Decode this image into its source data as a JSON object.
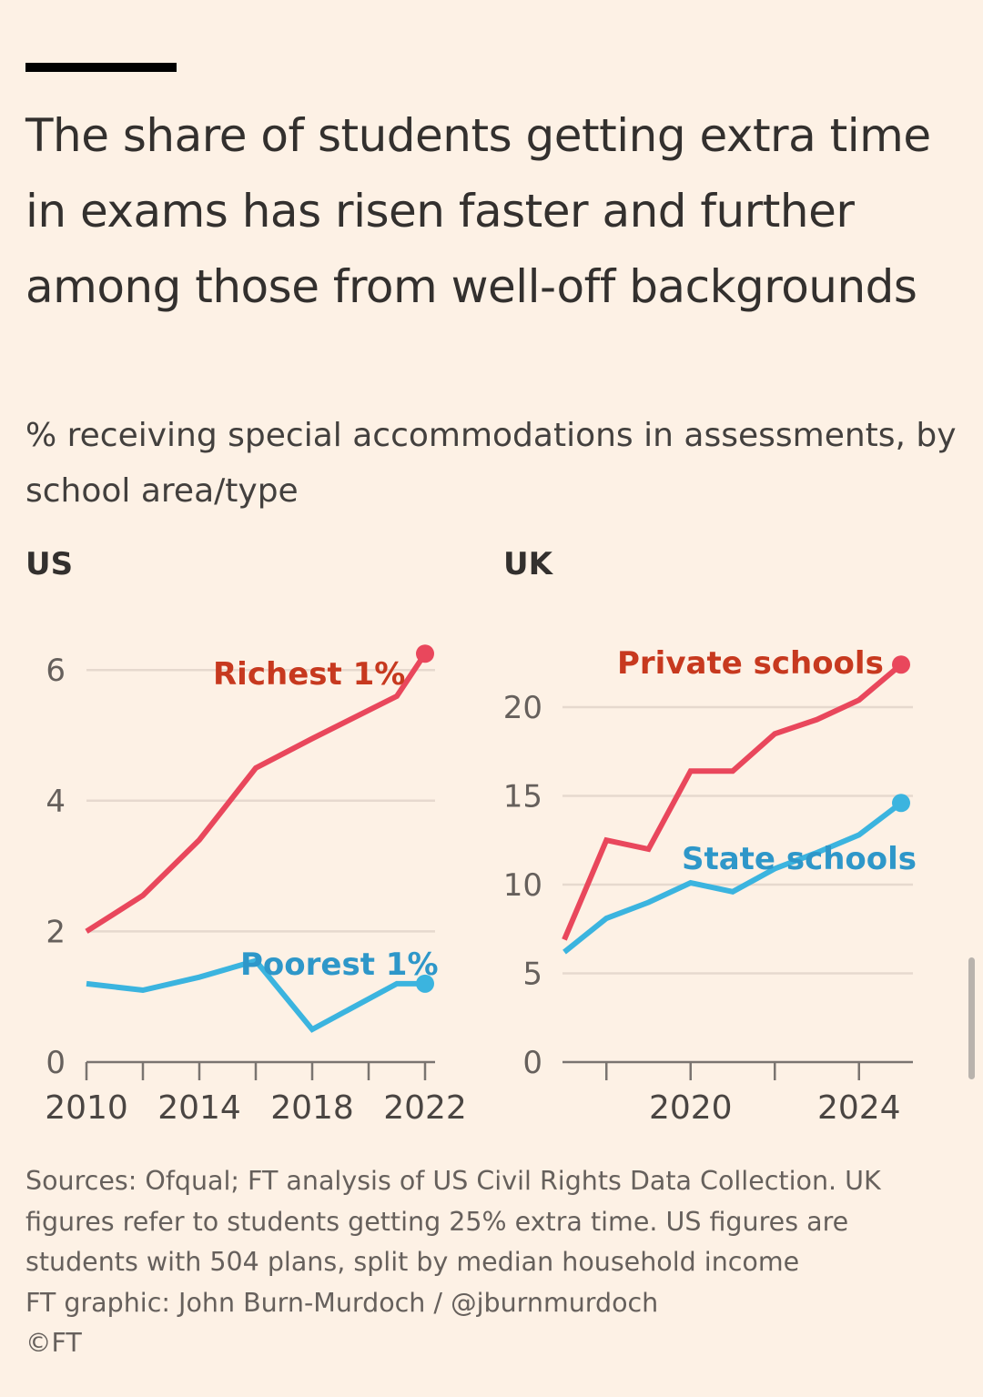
{
  "title": "The share of students getting extra time in exams has risen faster and further among those from well-off backgrounds",
  "subtitle": "% receiving special accommodations in assessments, by school area/type",
  "colors": {
    "red": "#e9475c",
    "blue": "#3bb4df",
    "red_label": "#c7391f",
    "blue_label": "#2e97c9"
  },
  "chart_data": [
    {
      "type": "line",
      "title": "US",
      "x": [
        2010,
        2012,
        2014,
        2016,
        2018,
        2021,
        2022
      ],
      "series": [
        {
          "name": "Richest 1%",
          "values": [
            2.0,
            2.55,
            3.4,
            4.5,
            4.95,
            5.6,
            6.25
          ]
        },
        {
          "name": "Poorest 1%",
          "values": [
            1.2,
            1.1,
            1.3,
            1.55,
            0.5,
            1.2,
            1.2
          ]
        }
      ],
      "ylim": [
        0,
        6
      ],
      "yticks": [
        "0",
        "2",
        "4",
        "6"
      ],
      "yticks_values": [
        0,
        2,
        4,
        6
      ],
      "xlim": [
        2010,
        2022
      ],
      "xticks_values": [
        2010,
        2012,
        2014,
        2016,
        2018,
        2020,
        2022
      ],
      "xtick_labels": [
        "2010",
        "2014",
        "2018",
        "2022"
      ],
      "xtick_label_values": [
        2010,
        2014,
        2018,
        2022
      ],
      "grid": true
    },
    {
      "type": "line",
      "title": "UK",
      "x": [
        2017,
        2018,
        2019,
        2020,
        2021,
        2022,
        2023,
        2024,
        2025
      ],
      "series": [
        {
          "name": "Private schools",
          "values": [
            6.9,
            12.5,
            12.0,
            16.4,
            16.4,
            18.5,
            19.3,
            20.4,
            22.4
          ]
        },
        {
          "name": "State schools",
          "values": [
            6.2,
            8.1,
            9.0,
            10.1,
            9.6,
            10.9,
            11.8,
            12.8,
            14.6
          ]
        }
      ],
      "ylim": [
        0,
        22.5
      ],
      "yticks": [
        "0",
        "5",
        "10",
        "15",
        "20"
      ],
      "yticks_values": [
        0,
        5,
        10,
        15,
        20
      ],
      "xlim": [
        2017,
        2025
      ],
      "xticks_values": [
        2018,
        2020,
        2022,
        2024
      ],
      "xtick_labels": [
        "2020",
        "2024"
      ],
      "xtick_label_values": [
        2020,
        2024
      ],
      "grid": true
    }
  ],
  "source_lines": [
    "Sources: Ofqual; FT analysis of US Civil Rights Data Collection. UK",
    "figures refer to students getting 25% extra time. US figures are",
    "students with 504 plans, split by median household income",
    "FT graphic: John Burn-Murdoch / @jburnmurdoch",
    "©FT"
  ]
}
